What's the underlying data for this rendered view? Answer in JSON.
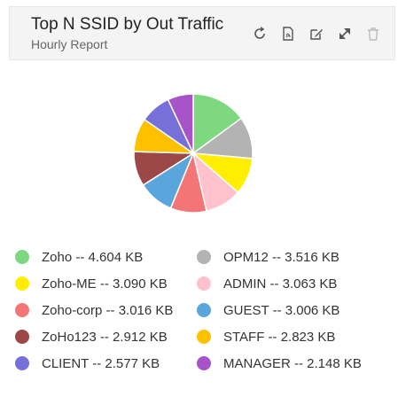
{
  "header": {
    "title": "Top N SSID by Out Traffic",
    "subtitle": "Hourly Report",
    "tools": [
      "refresh-icon",
      "export-pdf-icon",
      "edit-icon",
      "collapse-icon",
      "delete-icon"
    ]
  },
  "chart_data": {
    "type": "pie",
    "legend_position": "bottom",
    "unit": "KB",
    "slices": [
      {
        "label": "Zoho",
        "value": 4.604,
        "value_text": "4.604 KB",
        "color": "#7dd87f",
        "legend_text": "Zoho -- 4.604 KB"
      },
      {
        "label": "OPM12",
        "value": 3.516,
        "value_text": "3.516 KB",
        "color": "#b3b3b3",
        "legend_text": "OPM12 -- 3.516 KB"
      },
      {
        "label": "Zoho-ME",
        "value": 3.09,
        "value_text": "3.090 KB",
        "color": "#ffee00",
        "legend_text": "Zoho-ME -- 3.090 KB"
      },
      {
        "label": "ADMIN",
        "value": 3.063,
        "value_text": "3.063 KB",
        "color": "#ffc2cc",
        "legend_text": "ADMIN -- 3.063 KB"
      },
      {
        "label": "Zoho-corp",
        "value": 3.016,
        "value_text": "3.016 KB",
        "color": "#f47575",
        "legend_text": "Zoho-corp -- 3.016 KB"
      },
      {
        "label": "GUEST",
        "value": 3.006,
        "value_text": "3.006 KB",
        "color": "#5aa5dc",
        "legend_text": "GUEST -- 3.006 KB"
      },
      {
        "label": "ZoHo123",
        "value": 2.912,
        "value_text": "2.912 KB",
        "color": "#9c4848",
        "legend_text": "ZoHo123 -- 2.912 KB"
      },
      {
        "label": "STAFF",
        "value": 2.823,
        "value_text": "2.823 KB",
        "color": "#ffc000",
        "legend_text": "STAFF -- 2.823 KB"
      },
      {
        "label": "CLIENT",
        "value": 2.577,
        "value_text": "2.577 KB",
        "color": "#7670d8",
        "legend_text": "CLIENT -- 2.577 KB"
      },
      {
        "label": "MANAGER",
        "value": 2.148,
        "value_text": "2.148 KB",
        "color": "#a654c7",
        "legend_text": "MANAGER -- 2.148 KB"
      }
    ]
  }
}
